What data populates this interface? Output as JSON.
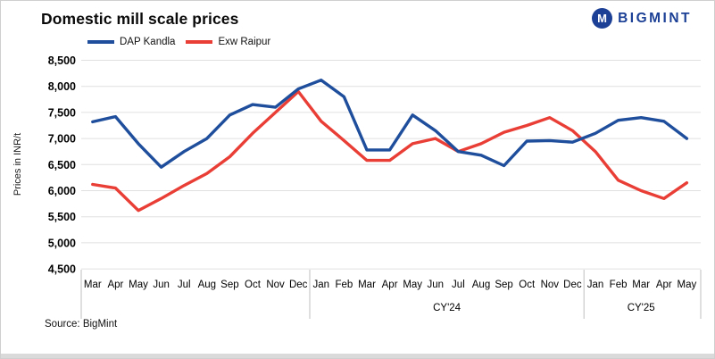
{
  "header": {
    "title": "Domestic mill scale prices",
    "logo_text": "BIGMINT",
    "logo_icon_letter": "M"
  },
  "footer": {
    "source": "Source: BigMint"
  },
  "colors": {
    "blue": "#1e4e9c",
    "red": "#e93e35",
    "logo_blue": "#1c4095",
    "grid": "#e0e0e0",
    "axis_line": "#bfbfbf"
  },
  "chart_data": {
    "type": "line",
    "title": "Domestic mill scale prices",
    "xlabel": "",
    "ylabel": "Prices in INR/t",
    "ylim": [
      4500,
      8500
    ],
    "grid": "horizontal",
    "legend_position": "top-left",
    "months": [
      "Mar",
      "Apr",
      "May",
      "Jun",
      "Jul",
      "Aug",
      "Sep",
      "Oct",
      "Nov",
      "Dec",
      "Jan",
      "Feb",
      "Mar",
      "Apr",
      "May",
      "Jun",
      "Jul",
      "Aug",
      "Sep",
      "Oct",
      "Nov",
      "Dec",
      "Jan",
      "Feb",
      "Mar",
      "Apr",
      "May"
    ],
    "year_groups": [
      {
        "label": "",
        "start": 0,
        "end": 9
      },
      {
        "label": "CY'24",
        "start": 10,
        "end": 21
      },
      {
        "label": "CY'25",
        "start": 22,
        "end": 26
      }
    ],
    "y_ticks": [
      {
        "value": 8500,
        "label": "8,500"
      },
      {
        "value": 8000,
        "label": "8,000"
      },
      {
        "value": 7500,
        "label": "7,500"
      },
      {
        "value": 7000,
        "label": "7,000"
      },
      {
        "value": 6500,
        "label": "6,500"
      },
      {
        "value": 6000,
        "label": "6,000"
      },
      {
        "value": 5500,
        "label": "5,500"
      },
      {
        "value": 5000,
        "label": "5,000"
      },
      {
        "value": 4500,
        "label": "4,500"
      }
    ],
    "series": [
      {
        "name": "DAP Kandla",
        "color": "#1e4e9c",
        "values": [
          7320,
          7420,
          6900,
          6450,
          6750,
          7000,
          7450,
          7650,
          7600,
          7950,
          8120,
          7800,
          6780,
          6780,
          7450,
          7150,
          6750,
          6680,
          6480,
          6950,
          6960,
          6930,
          7100,
          7350,
          7400,
          7330,
          7000
        ]
      },
      {
        "name": "Exw Raipur",
        "color": "#e93e35",
        "values": [
          6120,
          6050,
          5620,
          5850,
          6100,
          6330,
          6650,
          7100,
          7500,
          7900,
          7330,
          6960,
          6580,
          6580,
          6900,
          7000,
          6750,
          6900,
          7120,
          7250,
          7400,
          7150,
          6750,
          6200,
          6000,
          5850,
          6150
        ]
      }
    ]
  }
}
